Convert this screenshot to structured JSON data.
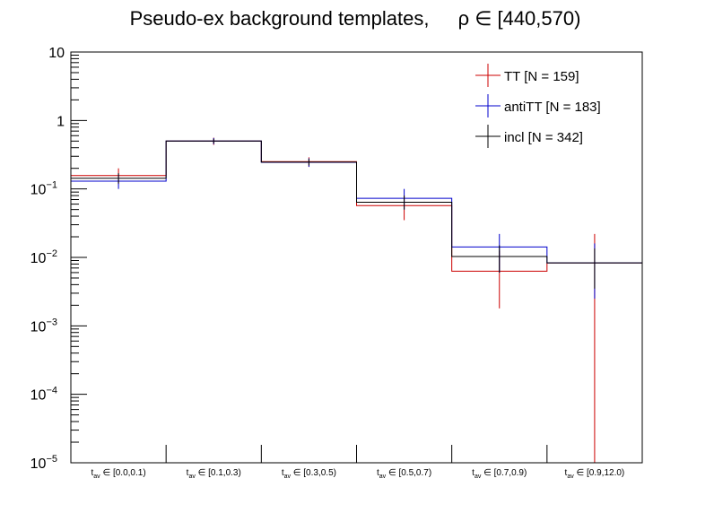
{
  "chart_data": {
    "type": "histogram",
    "title_prefix": "Pseudo-ex background templates,",
    "title_rho": "ρ ∈ [440,570)",
    "yscale": "log",
    "ylim": [
      1e-05,
      10
    ],
    "y_ticks": [
      {
        "value": 10,
        "label": "10",
        "sup": ""
      },
      {
        "value": 1,
        "label": "1",
        "sup": ""
      },
      {
        "value": 0.1,
        "label": "10",
        "sup": "−1"
      },
      {
        "value": 0.01,
        "label": "10",
        "sup": "−2"
      },
      {
        "value": 0.001,
        "label": "10",
        "sup": "−3"
      },
      {
        "value": 0.0001,
        "label": "10",
        "sup": "−4"
      },
      {
        "value": 1e-05,
        "label": "10",
        "sup": "−5"
      }
    ],
    "categories": [
      {
        "main": "t",
        "sub": "av",
        "rest": " ∈ [0.0,0.1)"
      },
      {
        "main": "t",
        "sub": "av",
        "rest": " ∈ [0.1,0.3)"
      },
      {
        "main": "t",
        "sub": "av",
        "rest": " ∈ [0.3,0.5)"
      },
      {
        "main": "t",
        "sub": "av",
        "rest": " ∈ [0.5,0.7)"
      },
      {
        "main": "t",
        "sub": "av",
        "rest": " ∈ [0.7,0.9)"
      },
      {
        "main": "t",
        "sub": "av",
        "rest": " ∈ [0.9,12.0)"
      }
    ],
    "series": [
      {
        "name": "TT [N = 159]",
        "color": "#cc0000",
        "values": [
          0.157,
          0.5,
          0.25,
          0.057,
          0.0063,
          0.0083
        ],
        "err_low": [
          0.117,
          0.44,
          0.21,
          0.035,
          0.0018,
          1e-05
        ],
        "err_high": [
          0.2,
          0.56,
          0.29,
          0.08,
          0.0125,
          0.022
        ]
      },
      {
        "name": "antiTT [N = 183]",
        "color": "#0000cc",
        "values": [
          0.13,
          0.5,
          0.245,
          0.073,
          0.0142,
          0.0083
        ],
        "err_low": [
          0.1,
          0.45,
          0.21,
          0.05,
          0.006,
          0.0025
        ],
        "err_high": [
          0.165,
          0.555,
          0.28,
          0.1,
          0.022,
          0.016
        ]
      },
      {
        "name": "incl [N = 342]",
        "color": "#000000",
        "values": [
          0.143,
          0.5,
          0.247,
          0.064,
          0.0103,
          0.0083
        ],
        "err_low": [
          0.12,
          0.46,
          0.22,
          0.05,
          0.006,
          0.0035
        ],
        "err_high": [
          0.17,
          0.54,
          0.275,
          0.08,
          0.015,
          0.0135
        ]
      }
    ]
  }
}
